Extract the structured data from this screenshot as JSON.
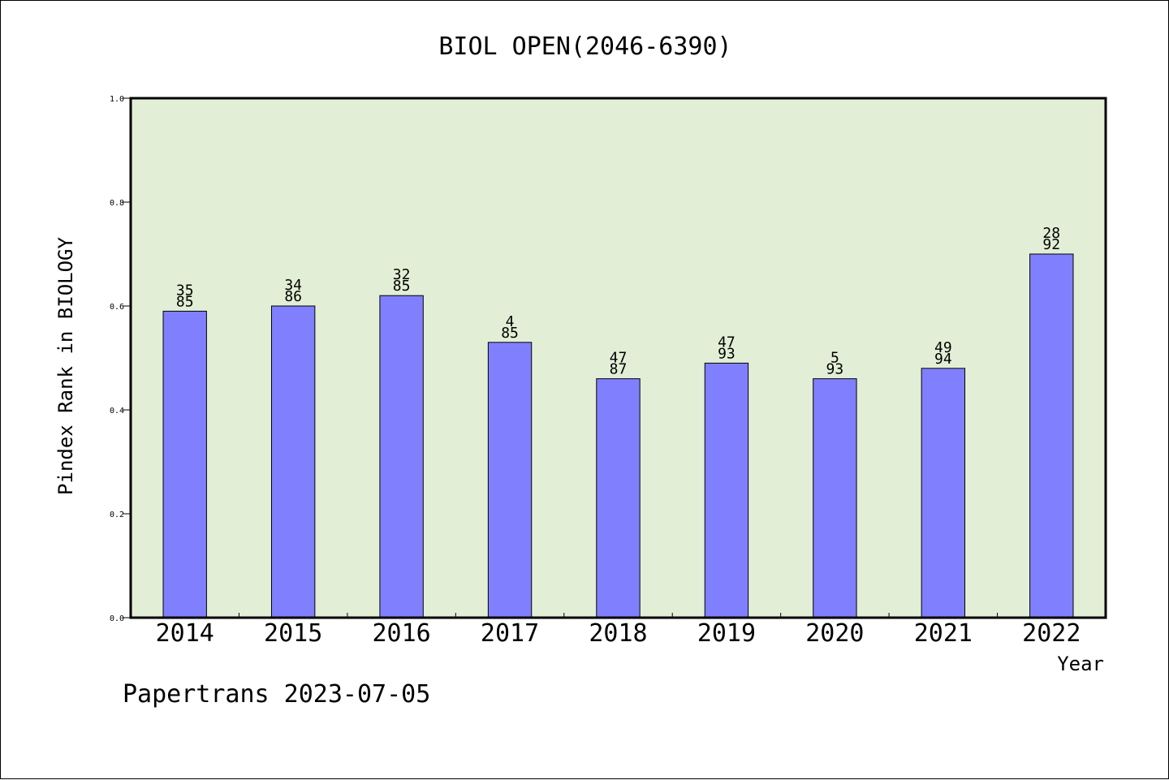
{
  "chart_data": {
    "type": "bar",
    "title": "BIOL OPEN(2046-6390)",
    "xlabel": "Year",
    "ylabel": "Pindex Rank in BIOLOGY",
    "ylim": [
      0,
      1.0
    ],
    "yticks": [
      "0.0",
      "0.2",
      "0.4",
      "0.6",
      "0.8",
      "1.0"
    ],
    "grid": false,
    "categories": [
      "2014",
      "2015",
      "2016",
      "2017",
      "2018",
      "2019",
      "2020",
      "2021",
      "2022"
    ],
    "values": [
      0.59,
      0.6,
      0.62,
      0.53,
      0.46,
      0.49,
      0.46,
      0.48,
      0.7
    ],
    "labels_top": [
      "35",
      "34",
      "32",
      "4",
      "47",
      "47",
      "5",
      "49",
      "28"
    ],
    "labels_bottom": [
      "85",
      "86",
      "85",
      "85",
      "87",
      "93",
      "93",
      "94",
      "92"
    ]
  },
  "footer": "Papertrans 2023-07-05",
  "colors": {
    "plot_background": "#e2efd6",
    "bar_fill": "#8080ff",
    "bar_stroke": "#000000"
  }
}
